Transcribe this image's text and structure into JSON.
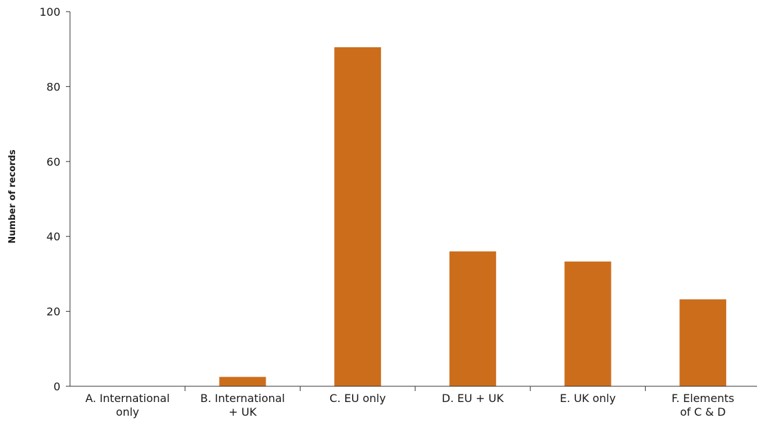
{
  "colors": {
    "bar": "#cc6d1c",
    "axis": "#333333"
  },
  "chart_data": {
    "type": "bar",
    "title": "",
    "xlabel": "",
    "ylabel": "Number of records",
    "ylim": [
      0,
      100
    ],
    "yticks": [
      0,
      20,
      40,
      60,
      80,
      100
    ],
    "grid": false,
    "categories": [
      [
        "A. International",
        "only"
      ],
      [
        "B. International",
        "+ UK"
      ],
      [
        "C. EU only"
      ],
      [
        "D. EU + UK"
      ],
      [
        "E. UK only"
      ],
      [
        "F. Elements",
        "of C & D"
      ]
    ],
    "values": [
      0,
      2.5,
      90.5,
      36,
      33.3,
      23.2
    ]
  }
}
